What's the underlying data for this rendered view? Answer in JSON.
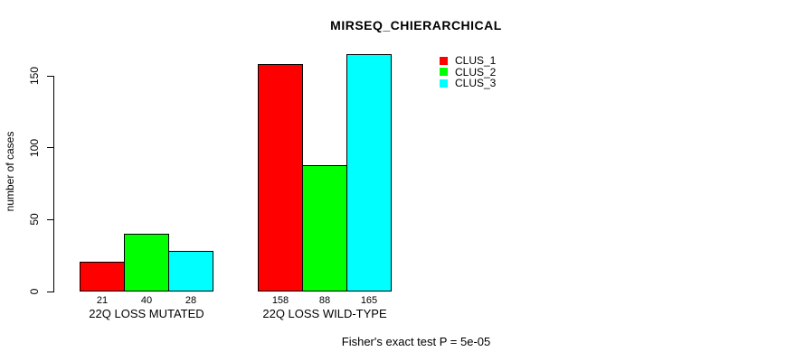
{
  "title": "MIRSEQ_CHIERARCHICAL",
  "y_axis": {
    "label": "number of cases"
  },
  "footer": "Fisher's exact test P = 5e-05",
  "chart_data": {
    "type": "bar",
    "title": "MIRSEQ_CHIERARCHICAL",
    "xlabel": "",
    "ylabel": "number of cases",
    "categories": [
      "22Q LOSS MUTATED",
      "22Q LOSS WILD-TYPE"
    ],
    "series": [
      {
        "name": "CLUS_1",
        "color": "#ff0000",
        "values": [
          21,
          158
        ]
      },
      {
        "name": "CLUS_2",
        "color": "#00ff00",
        "values": [
          40,
          88
        ]
      },
      {
        "name": "CLUS_3",
        "color": "#00ffff",
        "values": [
          28,
          165
        ]
      }
    ],
    "yticks": [
      0,
      50,
      100,
      150
    ],
    "ylim": [
      0,
      150
    ],
    "grid": false,
    "bar_borders": "#000000",
    "bar_value_labels_shown": true,
    "legend_position": "top-right",
    "annotation": "Fisher's exact test P = 5e-05"
  }
}
